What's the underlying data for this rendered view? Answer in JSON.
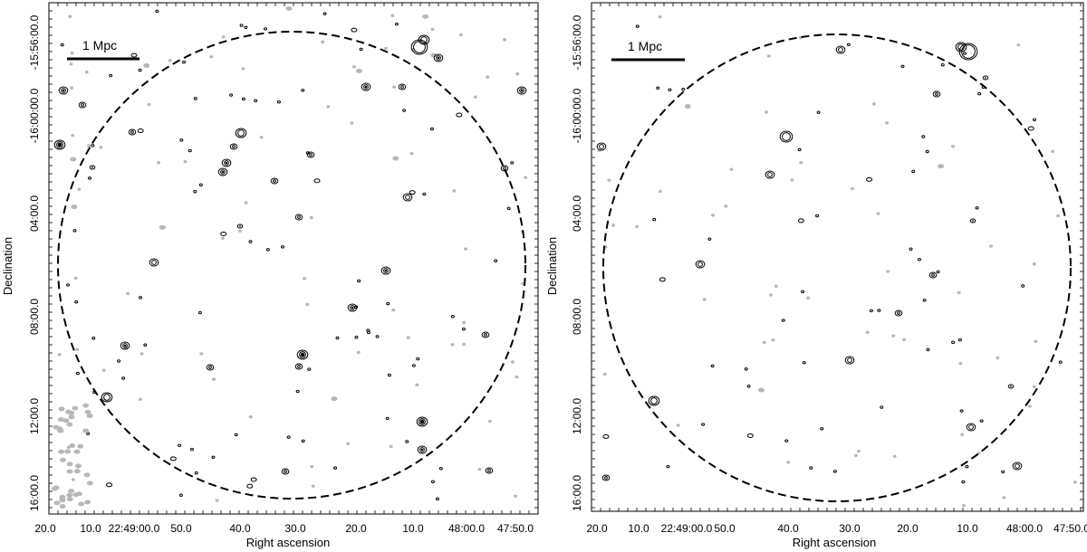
{
  "panels": [
    {
      "id": "left",
      "scale_bar_label": "1 Mpc",
      "x_axis_title": "Right ascension",
      "y_axis_title": "Declination",
      "x_tick_labels": [
        "20.0",
        "10.0",
        "22:49:00.0",
        "50.0",
        "40.0",
        "30.0",
        "20.0",
        "10.0",
        "48:00.0",
        "47:50.0"
      ],
      "y_tick_labels": [
        "-15:56:00.0",
        "-16:00:00.0",
        "04:00.0",
        "08:00.0",
        "12:00.0",
        "16:00.0"
      ]
    },
    {
      "id": "right",
      "scale_bar_label": "1 Mpc",
      "x_axis_title": "Right ascension",
      "y_axis_title": "Declination",
      "x_tick_labels": [
        "20.0",
        "10.0",
        "22:49:00.0",
        "50.0",
        "40.0",
        "30.0",
        "20.0",
        "10.0",
        "48:00.0",
        "47:50.0"
      ],
      "y_tick_labels": [
        "-15:56:00.0",
        "-16:00:00.0",
        "04:00.0",
        "08:00.0",
        "12:00.0",
        "16:00.0"
      ]
    }
  ],
  "colors": {
    "positive_contours": "#000000",
    "negative_contours": "#b8b8b8",
    "circle": "#000000"
  }
}
